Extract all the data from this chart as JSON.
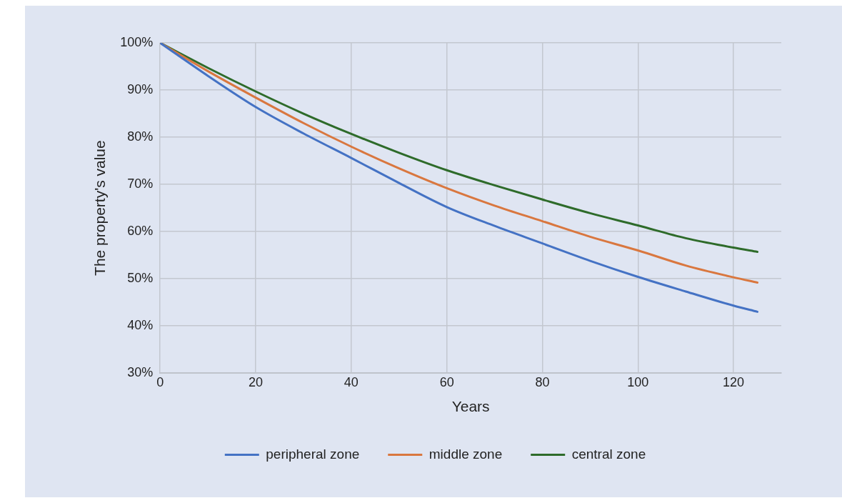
{
  "chart_data": {
    "type": "line",
    "xlabel": "Years",
    "ylabel": "The property's value",
    "x": [
      0,
      10,
      20,
      30,
      40,
      50,
      60,
      70,
      80,
      90,
      100,
      110,
      120,
      125
    ],
    "series": [
      {
        "name": "peripheral zone",
        "color": "#4472c4",
        "values": [
          100,
          93.0,
          86.4,
          80.8,
          75.6,
          70.3,
          65.2,
          61.2,
          57.5,
          53.8,
          50.4,
          47.3,
          44.3,
          43.0
        ]
      },
      {
        "name": "middle zone",
        "color": "#d9773f",
        "values": [
          100,
          94.0,
          88.4,
          83.0,
          78.0,
          73.4,
          69.2,
          65.5,
          62.2,
          58.9,
          56.0,
          52.8,
          50.3,
          49.2
        ]
      },
      {
        "name": "central zone",
        "color": "#2e6b2a",
        "values": [
          100,
          94.7,
          89.7,
          85.0,
          80.7,
          76.7,
          73.0,
          69.8,
          66.8,
          63.9,
          61.3,
          58.6,
          56.6,
          55.7
        ]
      }
    ],
    "xlim": [
      0,
      130
    ],
    "xticks": [
      0,
      20,
      40,
      60,
      80,
      100,
      120
    ],
    "ylim": [
      30,
      100
    ],
    "yticks": [
      {
        "value": 30,
        "label": "30%"
      },
      {
        "value": 40,
        "label": "40%"
      },
      {
        "value": 50,
        "label": "50%"
      },
      {
        "value": 60,
        "label": "60%"
      },
      {
        "value": 70,
        "label": "70%"
      },
      {
        "value": 80,
        "label": "80%"
      },
      {
        "value": 90,
        "label": "90%"
      },
      {
        "value": 100,
        "label": "100%"
      }
    ],
    "grid": true,
    "legend": "bottom",
    "marker": "none",
    "line_style": "solid"
  }
}
